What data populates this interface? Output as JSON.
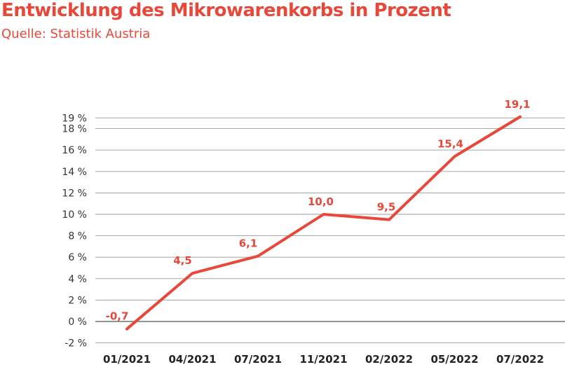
{
  "chart_data": {
    "type": "line",
    "title": "Entwicklung des Mikrowarenkorbs in Prozent",
    "subtitle": "Quelle: Statistik Austria",
    "categories": [
      "01/2021",
      "04/2021",
      "07/2021",
      "11/2021",
      "02/2022",
      "05/2022",
      "07/2022"
    ],
    "series": [
      {
        "values": [
          -0.7,
          4.5,
          6.1,
          10.0,
          9.5,
          15.4,
          19.1
        ],
        "labels": [
          "-0,7",
          "4,5",
          "6,1",
          "10,0",
          "9,5",
          "15,4",
          "19,1"
        ],
        "color": "#e8483a"
      }
    ],
    "y_ticks": [
      -2,
      0,
      2,
      4,
      6,
      8,
      10,
      12,
      14,
      16,
      18,
      19
    ],
    "y_tick_labels": [
      "-2 %",
      "0 %",
      "2 %",
      "4 %",
      "6 %",
      "8 %",
      "10 %",
      "12 %",
      "14 %",
      "16 %",
      "18 %",
      "19 %"
    ],
    "ylim": [
      -2,
      20
    ],
    "grid": "horizontal",
    "xlabel": "",
    "ylabel": ""
  }
}
